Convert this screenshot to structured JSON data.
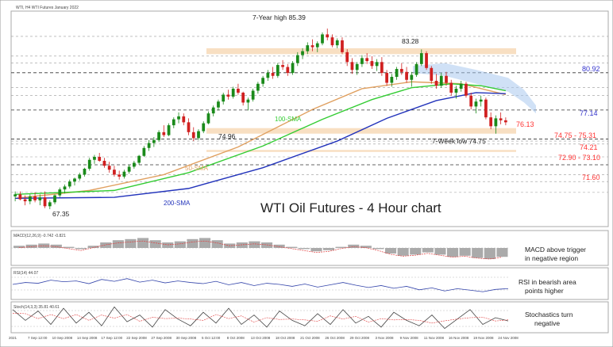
{
  "header": {
    "symbol_label": "WTI, H4  WTI Futures January 2022"
  },
  "chart_data": {
    "type": "candlestick",
    "title": "WTI Oil Futures - 4 Hour chart",
    "ylim": [
      65.5,
      87.0
    ],
    "x_tick_labels": [
      "2021",
      "7 Sep 12:00",
      "10 Sep 2008",
      "14 Sep 2008",
      "17 Sep 12:00",
      "22 Sep 2008",
      "27 Sep 2008",
      "30 Sep 2008",
      "5 Oct 12:00",
      "8 Oct 2008",
      "13 Oct 2008",
      "18 Oct 2008",
      "21 Oct 2008",
      "26 Oct 2008",
      "29 Oct 2008",
      "3 Nov 2008",
      "9 Nov 2008",
      "11 Nov 2008",
      "16 Nov 2008",
      "19 Nov 2008",
      "24 Nov 2008"
    ],
    "candles": [
      [
        68.4,
        68.9,
        67.9,
        68.6
      ],
      [
        68.6,
        68.9,
        68.0,
        68.1
      ],
      [
        68.1,
        68.5,
        67.5,
        67.9
      ],
      [
        67.9,
        68.6,
        67.6,
        68.4
      ],
      [
        68.4,
        68.8,
        67.8,
        68.0
      ],
      [
        68.0,
        68.6,
        67.5,
        68.3
      ],
      [
        68.3,
        68.9,
        67.2,
        67.4
      ],
      [
        67.4,
        68.0,
        67.1,
        67.8
      ],
      [
        67.8,
        68.6,
        67.6,
        68.5
      ],
      [
        68.5,
        69.3,
        68.3,
        69.1
      ],
      [
        69.1,
        69.6,
        68.7,
        69.4
      ],
      [
        69.4,
        70.1,
        69.2,
        69.9
      ],
      [
        69.9,
        70.3,
        69.5,
        70.2
      ],
      [
        70.2,
        70.8,
        70.0,
        70.6
      ],
      [
        70.6,
        71.3,
        70.4,
        71.2
      ],
      [
        71.2,
        72.3,
        71.0,
        72.1
      ],
      [
        72.1,
        72.6,
        71.7,
        72.4
      ],
      [
        72.4,
        72.8,
        71.9,
        72.0
      ],
      [
        72.0,
        72.3,
        71.3,
        71.5
      ],
      [
        71.5,
        71.9,
        70.8,
        71.1
      ],
      [
        71.1,
        71.5,
        70.4,
        70.6
      ],
      [
        70.6,
        71.0,
        70.1,
        70.4
      ],
      [
        70.4,
        71.1,
        70.2,
        70.9
      ],
      [
        70.9,
        71.6,
        70.7,
        71.4
      ],
      [
        71.4,
        72.0,
        71.2,
        71.8
      ],
      [
        71.8,
        72.6,
        71.6,
        72.5
      ],
      [
        72.5,
        73.5,
        72.4,
        73.3
      ],
      [
        73.3,
        74.1,
        73.0,
        73.8
      ],
      [
        73.8,
        74.4,
        73.4,
        74.1
      ],
      [
        74.1,
        75.1,
        73.9,
        74.9
      ],
      [
        74.9,
        75.6,
        74.4,
        74.6
      ],
      [
        74.6,
        75.8,
        74.5,
        75.6
      ],
      [
        75.6,
        76.4,
        75.3,
        76.2
      ],
      [
        76.2,
        76.9,
        75.8,
        76.5
      ],
      [
        76.5,
        76.8,
        75.6,
        75.9
      ],
      [
        75.9,
        76.3,
        74.6,
        74.9
      ],
      [
        74.9,
        75.4,
        74.0,
        74.3
      ],
      [
        74.3,
        75.2,
        74.1,
        75.0
      ],
      [
        75.0,
        76.0,
        74.8,
        75.8
      ],
      [
        75.8,
        77.0,
        75.7,
        76.8
      ],
      [
        76.8,
        77.6,
        76.5,
        77.4
      ],
      [
        77.4,
        78.2,
        77.1,
        78.0
      ],
      [
        78.0,
        78.9,
        77.7,
        78.7
      ],
      [
        78.7,
        79.2,
        78.2,
        78.5
      ],
      [
        78.5,
        79.5,
        78.3,
        79.3
      ],
      [
        79.3,
        79.8,
        78.7,
        78.9
      ],
      [
        78.9,
        79.0,
        77.6,
        77.9
      ],
      [
        77.9,
        78.4,
        77.1,
        78.2
      ],
      [
        78.2,
        79.3,
        78.0,
        79.1
      ],
      [
        79.1,
        80.0,
        78.8,
        79.8
      ],
      [
        79.8,
        80.6,
        79.5,
        80.4
      ],
      [
        80.4,
        81.2,
        80.1,
        80.9
      ],
      [
        80.9,
        81.5,
        80.3,
        80.6
      ],
      [
        80.6,
        81.9,
        80.4,
        81.7
      ],
      [
        81.7,
        82.2,
        81.2,
        81.5
      ],
      [
        81.5,
        81.8,
        80.6,
        80.9
      ],
      [
        80.9,
        82.1,
        80.7,
        81.9
      ],
      [
        81.9,
        83.0,
        81.6,
        82.7
      ],
      [
        82.7,
        83.4,
        82.3,
        83.1
      ],
      [
        83.1,
        84.0,
        82.8,
        83.7
      ],
      [
        83.7,
        84.3,
        83.1,
        83.5
      ],
      [
        83.5,
        84.1,
        83.0,
        83.9
      ],
      [
        83.9,
        85.0,
        83.7,
        84.8
      ],
      [
        84.8,
        85.39,
        84.2,
        84.5
      ],
      [
        84.5,
        84.8,
        83.5,
        83.7
      ],
      [
        83.7,
        84.4,
        83.4,
        84.2
      ],
      [
        84.2,
        84.5,
        82.8,
        83.0
      ],
      [
        83.0,
        83.3,
        81.6,
        82.0
      ],
      [
        82.0,
        82.4,
        80.8,
        81.2
      ],
      [
        81.2,
        82.0,
        80.7,
        81.8
      ],
      [
        81.8,
        82.7,
        81.5,
        82.4
      ],
      [
        82.4,
        82.9,
        81.8,
        82.1
      ],
      [
        82.1,
        82.6,
        81.3,
        81.6
      ],
      [
        81.6,
        82.3,
        81.1,
        82.0
      ],
      [
        82.0,
        82.5,
        80.6,
        80.9
      ],
      [
        80.9,
        81.2,
        79.6,
        79.9
      ],
      [
        79.9,
        80.8,
        79.5,
        80.5
      ],
      [
        80.5,
        81.5,
        80.2,
        81.3
      ],
      [
        81.3,
        81.9,
        80.7,
        81.0
      ],
      [
        81.0,
        81.5,
        79.9,
        80.2
      ],
      [
        80.2,
        81.0,
        79.5,
        80.7
      ],
      [
        80.7,
        82.0,
        80.5,
        81.8
      ],
      [
        81.8,
        83.28,
        81.6,
        82.9
      ],
      [
        82.9,
        83.1,
        81.2,
        81.4
      ],
      [
        81.4,
        81.6,
        79.8,
        80.1
      ],
      [
        80.1,
        80.8,
        79.3,
        79.6
      ],
      [
        79.6,
        80.9,
        79.4,
        80.6
      ],
      [
        80.6,
        81.0,
        79.6,
        79.9
      ],
      [
        79.9,
        80.2,
        78.6,
        78.9
      ],
      [
        78.9,
        79.6,
        78.3,
        79.3
      ],
      [
        79.3,
        80.1,
        79.0,
        79.8
      ],
      [
        79.8,
        80.0,
        78.4,
        78.6
      ],
      [
        78.6,
        78.9,
        77.2,
        77.5
      ],
      [
        77.5,
        78.3,
        76.8,
        78.0
      ],
      [
        78.0,
        78.6,
        77.5,
        78.2
      ],
      [
        78.2,
        78.4,
        76.2,
        76.4
      ],
      [
        76.4,
        76.9,
        75.2,
        75.5
      ],
      [
        75.5,
        76.6,
        74.75,
        76.3
      ],
      [
        76.3,
        76.9,
        75.7,
        76.1
      ],
      [
        76.1,
        76.4,
        75.6,
        75.9
      ]
    ],
    "moving_averages": [
      {
        "name": "50-SMA",
        "color": "#e0a060",
        "values": [
          [
            0,
            68.2
          ],
          [
            15,
            69.0
          ],
          [
            30,
            70.6
          ],
          [
            45,
            73.4
          ],
          [
            60,
            77.2
          ],
          [
            70,
            79.3
          ],
          [
            80,
            80.0
          ],
          [
            90,
            79.8
          ],
          [
            99,
            78.7
          ]
        ]
      },
      {
        "name": "100-SMA",
        "color": "#33cc33",
        "values": [
          [
            0,
            68.6
          ],
          [
            20,
            69.0
          ],
          [
            35,
            70.8
          ],
          [
            50,
            73.5
          ],
          [
            62,
            76.2
          ],
          [
            72,
            78.2
          ],
          [
            80,
            79.4
          ],
          [
            88,
            79.8
          ],
          [
            94,
            79.6
          ],
          [
            99,
            79.1
          ]
        ]
      },
      {
        "name": "200-SMA",
        "color": "#2233bb",
        "values": [
          [
            0,
            68.2
          ],
          [
            20,
            68.3
          ],
          [
            35,
            69.2
          ],
          [
            50,
            71.3
          ],
          [
            65,
            74.0
          ],
          [
            75,
            76.3
          ],
          [
            85,
            78.1
          ],
          [
            93,
            78.9
          ],
          [
            99,
            78.8
          ]
        ]
      }
    ],
    "horizontal_levels": [
      {
        "value": 80.92,
        "label": "80.92",
        "color": "#3333cc"
      },
      {
        "value": 77.14,
        "label": "77.14",
        "color": "#3333cc"
      },
      {
        "value": 74.21,
        "label": "74.21",
        "color": "#ff3333"
      },
      {
        "value": 71.6,
        "label": "71.60",
        "color": "#ff3333"
      }
    ],
    "zones": [
      {
        "low": 74.75,
        "high": 75.31,
        "label": "74.75 - 75.31",
        "color": "#ff3333"
      },
      {
        "low": 72.9,
        "high": 73.1,
        "label": "72.90 - 73.10",
        "color": "#ff3333"
      },
      {
        "low": 82.8,
        "high": 83.4,
        "label": "",
        "color": "#f6d4ae"
      }
    ],
    "price_label": {
      "value": 76.13,
      "label": "76.13",
      "color": "#ff3333"
    },
    "annotations": [
      {
        "text": "7-Year high 85.39"
      },
      {
        "text": "83.28"
      },
      {
        "text": "74.96"
      },
      {
        "text": "7-Week low 74.75"
      },
      {
        "text": "67.35"
      },
      {
        "text": "100-SMA",
        "color": "#33cc33"
      },
      {
        "text": "50-SMA",
        "color": "#e0a060"
      },
      {
        "text": "200-SMA",
        "color": "#2233bb"
      }
    ],
    "indicators": {
      "macd": {
        "label": "MACD(12,26,9) -0.742 -0.821",
        "note_lines": [
          "MACD above trigger",
          "in negative region"
        ],
        "values": [
          0.2,
          0.3,
          0.4,
          0.3,
          0.1,
          -0.1,
          0.2,
          0.5,
          0.7,
          0.8,
          0.9,
          0.7,
          0.5,
          0.6,
          0.8,
          0.9,
          0.7,
          0.4,
          0.5,
          0.6,
          0.5,
          0.3,
          0.1,
          -0.1,
          -0.3,
          -0.2,
          0.1,
          0.3,
          0.2,
          -0.1,
          -0.5,
          -0.7,
          -0.6,
          -0.4,
          -0.6,
          -0.8,
          -0.7,
          -0.9,
          -1.0,
          -0.8
        ]
      },
      "rsi": {
        "label": "RSI(14) 44.07",
        "note_lines": [
          "RSI in bearish area",
          "points higher"
        ],
        "values": [
          55,
          60,
          58,
          66,
          62,
          64,
          57,
          68,
          63,
          70,
          61,
          66,
          59,
          64,
          60,
          57,
          63,
          54,
          60,
          52,
          58,
          55,
          50,
          56,
          48,
          54,
          60,
          53,
          47,
          52,
          45,
          50,
          41,
          46,
          38,
          44,
          40,
          36,
          42,
          44
        ]
      },
      "stoch": {
        "label": "Stoch(14,3,3) 35.81 40.61",
        "note_lines": [
          "Stochastics turn",
          "negative"
        ],
        "values": [
          80,
          40,
          75,
          25,
          85,
          30,
          70,
          20,
          90,
          35,
          60,
          15,
          80,
          45,
          20,
          70,
          30,
          85,
          25,
          60,
          15,
          75,
          40,
          20,
          65,
          25,
          80,
          30,
          55,
          15,
          70,
          40,
          20,
          60,
          10,
          45,
          80,
          25,
          50,
          38
        ]
      }
    }
  }
}
